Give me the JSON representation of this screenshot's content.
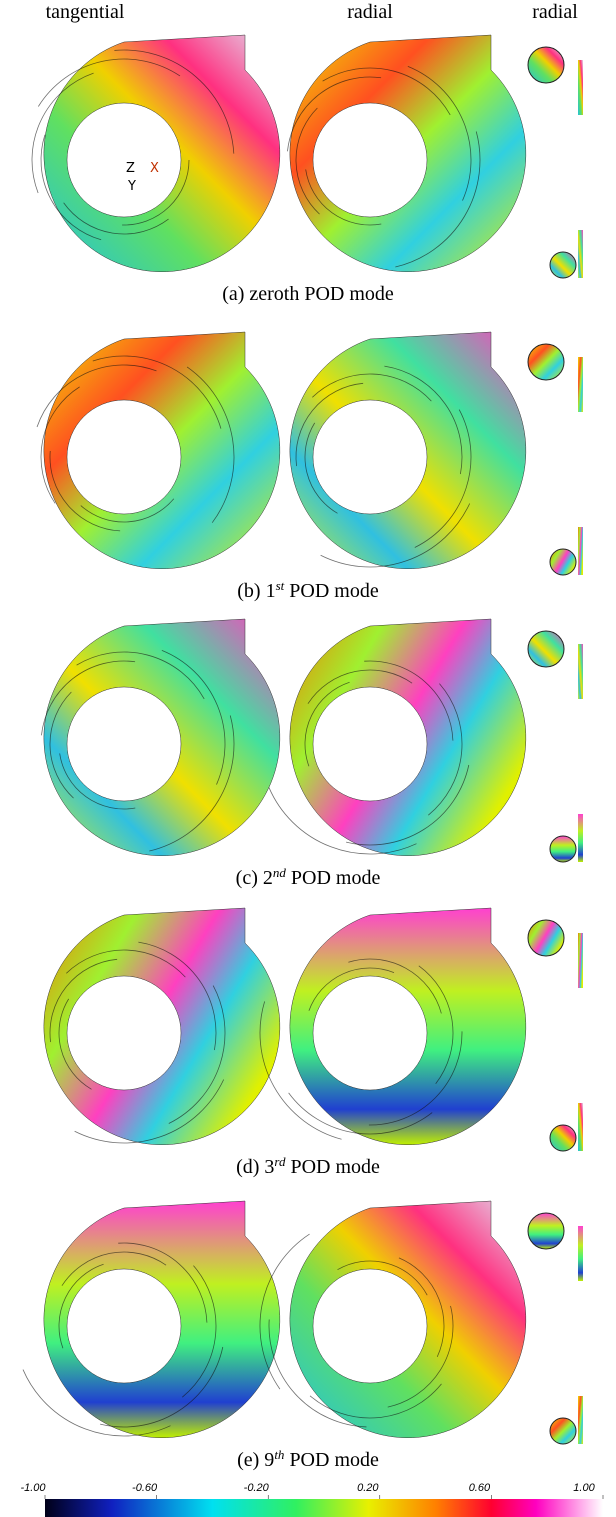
{
  "header": {
    "columns": [
      "tangential",
      "radial",
      "radial"
    ]
  },
  "rows": [
    {
      "caption": {
        "prefix": "(a) zeroth POD mode"
      },
      "axis_labels": [
        "Z",
        "X",
        "Y"
      ]
    },
    {
      "caption": {
        "prefix": "(b) 1",
        "sup": "st",
        "suffix": " POD mode"
      }
    },
    {
      "caption": {
        "prefix": "(c) 2",
        "sup": "nd",
        "suffix": " POD mode"
      }
    },
    {
      "caption": {
        "prefix": "(d) 3",
        "sup": "rd",
        "suffix": " POD mode"
      }
    },
    {
      "caption": {
        "prefix": "(e) 9",
        "sup": "th",
        "suffix": " POD mode"
      }
    }
  ],
  "colorbar": {
    "ticks": [
      {
        "value": -1,
        "label": "-1.00"
      },
      {
        "value": -0.6,
        "label": "-0.60"
      },
      {
        "value": -0.2,
        "label": "-0.20"
      },
      {
        "value": 0.2,
        "label": "0.20"
      },
      {
        "value": 0.6,
        "label": "0.60"
      },
      {
        "value": 1,
        "label": "1.00"
      }
    ]
  }
}
